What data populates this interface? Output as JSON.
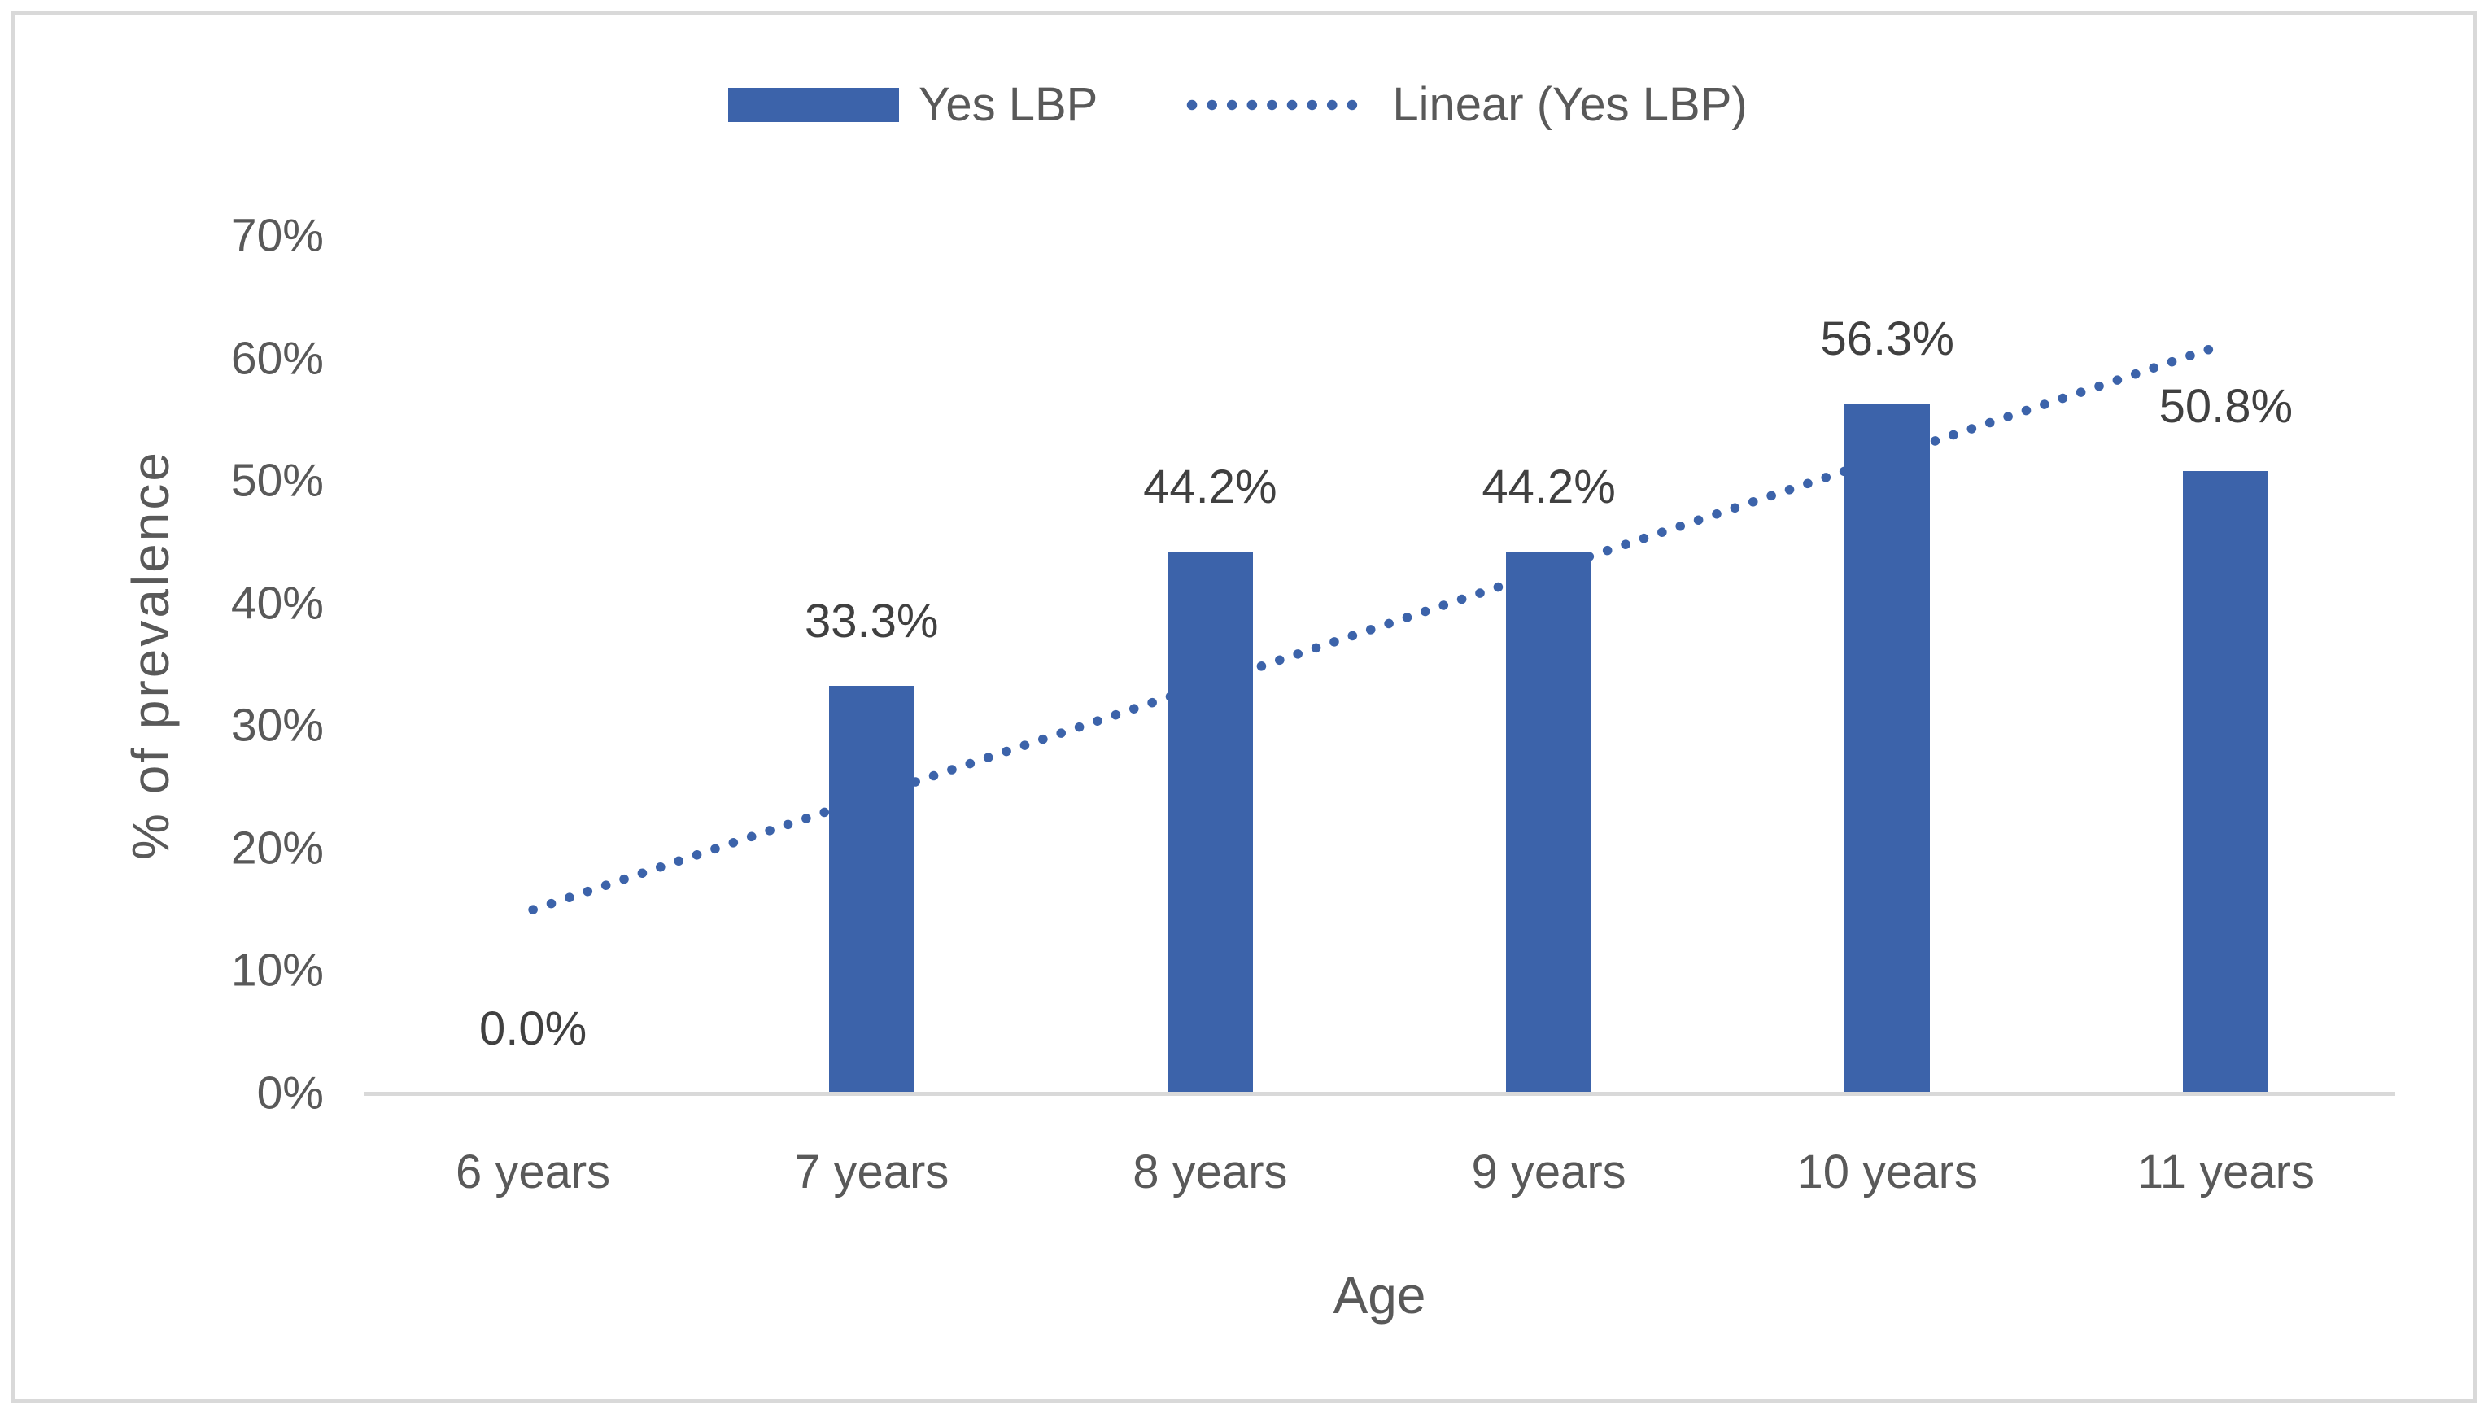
{
  "chart_data": {
    "type": "bar",
    "categories": [
      "6 years",
      "7 years",
      "8 years",
      "9 years",
      "10 years",
      "11 years"
    ],
    "series": [
      {
        "name": "Yes LBP",
        "type": "bar",
        "values": [
          0.0,
          33.3,
          44.2,
          44.2,
          56.3,
          50.8
        ]
      },
      {
        "name": "Linear (Yes LBP)",
        "type": "linear-trendline",
        "trend_start_percent": 15.0,
        "trend_end_percent": 61.2
      }
    ],
    "data_labels": [
      "0.0%",
      "33.3%",
      "44.2%",
      "44.2%",
      "56.3%",
      "50.8%"
    ],
    "xlabel": "Age",
    "ylabel": "% of prevalence",
    "y_ticks": [
      "0%",
      "10%",
      "20%",
      "30%",
      "40%",
      "50%",
      "60%",
      "70%"
    ],
    "ylim": [
      0,
      70
    ],
    "grid": false,
    "legend_position": "top-center",
    "colors": {
      "bar": "#3C63AA",
      "trendline": "#3C63AA",
      "axis_line": "#D9D9D9",
      "frame_border": "#D9D9D9",
      "axis_text": "#595959",
      "data_label_text": "#404040",
      "legend_text": "#595959"
    }
  }
}
